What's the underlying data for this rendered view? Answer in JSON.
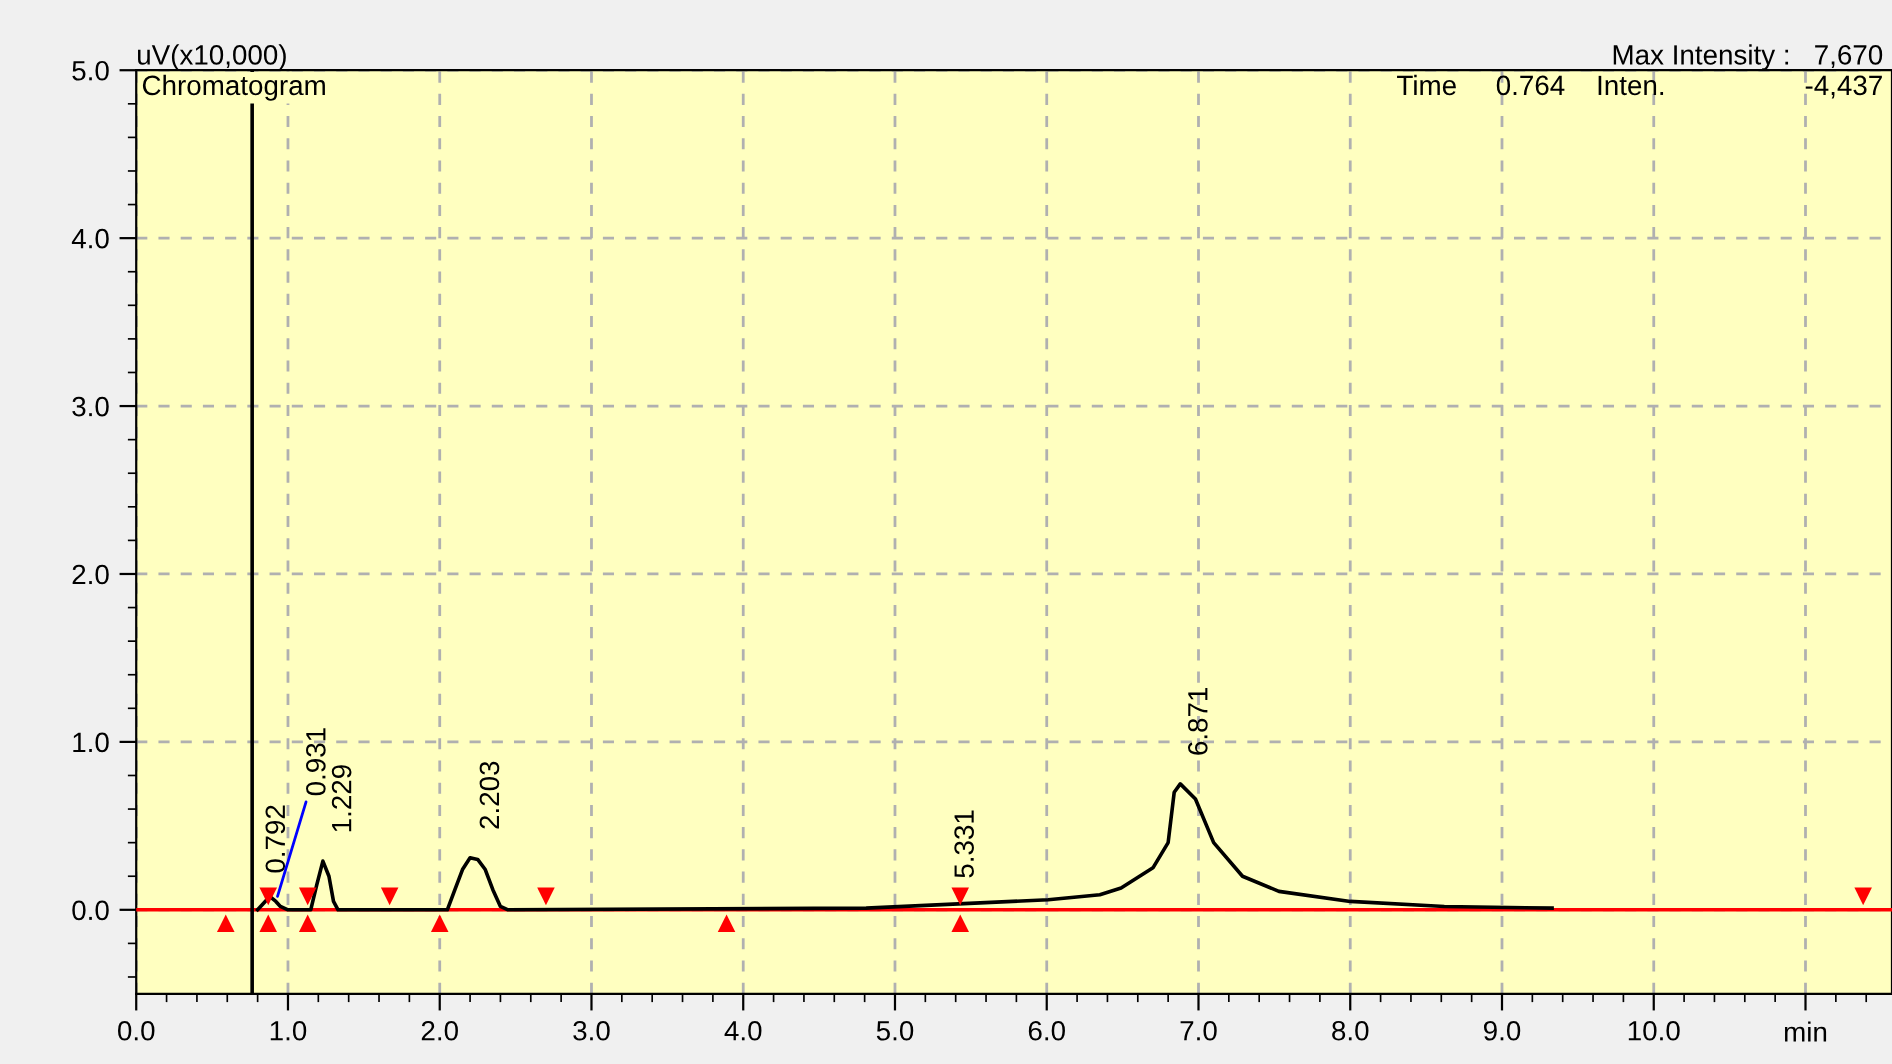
{
  "chart_data": {
    "type": "line",
    "title": "Chromatogram",
    "xlabel": "min",
    "ylabel": "uV(x10,000)",
    "annotations": [
      "Max Intensity :   7,670",
      "Time     0.764    Inten.                  -4,437",
      {
        "text": "0.792",
        "x": 0.792,
        "y": 0.05
      },
      {
        "text": "0.931",
        "x": 0.931,
        "y": 0.08
      },
      {
        "text": "1.229",
        "x": 1.229,
        "y": 0.29
      },
      {
        "text": "2.203",
        "x": 2.203,
        "y": 0.31
      },
      {
        "text": "5.331",
        "x": 5.331,
        "y": 0.02
      },
      {
        "text": "6.871",
        "x": 6.871,
        "y": 0.75
      }
    ],
    "xlim": [
      0,
      11.57
    ],
    "ylim": [
      -0.5,
      5.0
    ],
    "xticks": [
      {
        "value": 0,
        "label": "0.0"
      },
      {
        "value": 1,
        "label": "1.0"
      },
      {
        "value": 2,
        "label": "2.0"
      },
      {
        "value": 3,
        "label": "3.0"
      },
      {
        "value": 4,
        "label": "4.0"
      },
      {
        "value": 5,
        "label": "5.0"
      },
      {
        "value": 6,
        "label": "6.0"
      },
      {
        "value": 7,
        "label": "7.0"
      },
      {
        "value": 8,
        "label": "8.0"
      },
      {
        "value": 9,
        "label": "9.0"
      },
      {
        "value": 10,
        "label": "10.0"
      },
      {
        "value": 11,
        "label": null
      }
    ],
    "yticks": [
      {
        "value": 0,
        "label": "0.0"
      },
      {
        "value": 1,
        "label": "1.0"
      },
      {
        "value": 2,
        "label": "2.0"
      },
      {
        "value": 3,
        "label": "3.0"
      },
      {
        "value": 4,
        "label": "4.0"
      },
      {
        "value": 5,
        "label": "5.0"
      }
    ],
    "grid": true,
    "ref_lines": [
      {
        "axis": "y",
        "value": 0,
        "color": "#ff0000"
      },
      {
        "axis": "x",
        "value": 0.764,
        "color": "#000000"
      }
    ],
    "series": [
      {
        "color": "#000000",
        "marker": "none",
        "x": [
          0.8,
          0.85,
          0.88,
          0.92,
          0.95,
          1.0,
          1.15,
          1.19,
          1.23,
          1.27,
          1.3,
          1.33,
          2.05,
          2.1,
          2.15,
          2.2,
          2.25,
          2.3,
          2.35,
          2.4,
          2.45,
          4.81,
          6.01,
          6.35,
          6.49,
          6.7,
          6.8,
          6.84,
          6.88,
          6.98,
          7.1,
          7.29,
          7.53,
          8.0,
          8.62,
          9.33
        ],
        "values": [
          0.0,
          0.05,
          0.08,
          0.05,
          0.02,
          0.0,
          0.0,
          0.15,
          0.29,
          0.2,
          0.05,
          0.0,
          0.0,
          0.12,
          0.24,
          0.31,
          0.3,
          0.24,
          0.12,
          0.02,
          0.0,
          0.01,
          0.06,
          0.09,
          0.13,
          0.25,
          0.4,
          0.7,
          0.75,
          0.66,
          0.4,
          0.2,
          0.11,
          0.05,
          0.02,
          0.01
        ]
      },
      {
        "type": "scatter",
        "color": "#ff0000",
        "marker": "triangle",
        "x": [
          0.59,
          0.87,
          1.13,
          2.0,
          3.89,
          5.43
        ],
        "values": [
          -0.08,
          -0.08,
          -0.08,
          -0.08,
          -0.08,
          -0.08
        ]
      },
      {
        "type": "scatter",
        "color": "#ff0000",
        "marker": "triangle",
        "x": [
          0.87,
          1.13,
          1.67,
          2.7,
          5.43,
          11.38
        ],
        "values": [
          0.08,
          0.08,
          0.08,
          0.08,
          0.08,
          0.08
        ]
      }
    ]
  }
}
